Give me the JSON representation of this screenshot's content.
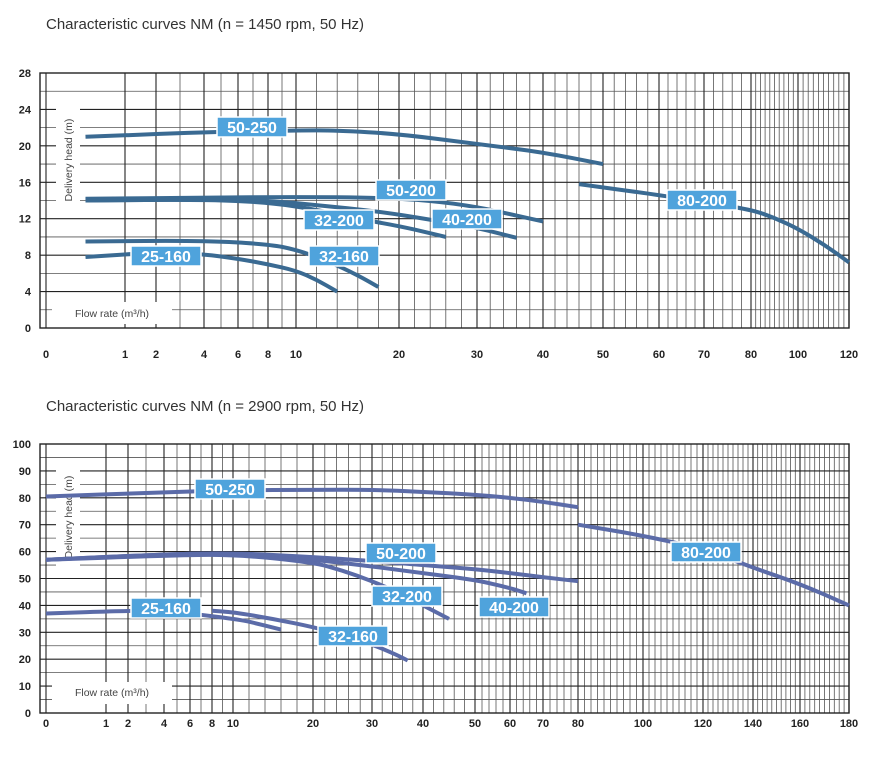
{
  "chart_data": [
    {
      "type": "line",
      "title": "Characteristic curves NM (n = 1450 rpm, 50 Hz)",
      "ylabel": "Delivery head (m)",
      "xlabel": "Flow rate (m³/h)",
      "ylim": [
        0,
        28
      ],
      "y_ticks": [
        0,
        4,
        8,
        12,
        16,
        20,
        24,
        28
      ],
      "x_ticks": [
        0,
        1,
        2,
        4,
        6,
        8,
        10,
        20,
        30,
        40,
        50,
        60,
        70,
        80,
        100,
        120
      ],
      "x_scale": "nonlinear",
      "grid": true,
      "colors": {
        "curve": "#3a6a92",
        "label_bg": "#4fa3dc",
        "label_text": "#ffffff",
        "grid": "#333333"
      },
      "series": [
        {
          "name": "50-250",
          "x": [
            0.5,
            4,
            10,
            14,
            20,
            30,
            40,
            50
          ],
          "y": [
            21,
            21.5,
            21.7,
            21.7,
            21.3,
            20.2,
            19.3,
            18
          ]
        },
        {
          "name": "80-200",
          "x": [
            46,
            60,
            70,
            80,
            90,
            100,
            110,
            120
          ],
          "y": [
            15.8,
            14.6,
            13.8,
            13,
            12.1,
            10.9,
            9.2,
            7.2
          ]
        },
        {
          "name": "50-200",
          "x": [
            0.5,
            4,
            10,
            18,
            24,
            30,
            35,
            40
          ],
          "y": [
            14.2,
            14.3,
            14.4,
            14.3,
            14.0,
            13.3,
            12.5,
            11.7
          ]
        },
        {
          "name": "40-200",
          "x": [
            0.5,
            4,
            8,
            12,
            18,
            24,
            30,
            36
          ],
          "y": [
            14.0,
            14.1,
            14.0,
            13.5,
            12.8,
            11.9,
            11.0,
            9.9
          ]
        },
        {
          "name": "32-200",
          "x": [
            0.5,
            4,
            8,
            12,
            16,
            20,
            24,
            26
          ],
          "y": [
            14.0,
            14.1,
            13.8,
            13.0,
            12.0,
            11.2,
            10.4,
            10.0
          ]
        },
        {
          "name": "32-160",
          "x": [
            0.5,
            4,
            8,
            10,
            13,
            16,
            18
          ],
          "y": [
            9.5,
            9.6,
            9.2,
            8.6,
            7.4,
            5.8,
            4.5
          ]
        },
        {
          "name": "25-160",
          "x": [
            0.5,
            2,
            4,
            6,
            8,
            10,
            12,
            14
          ],
          "y": [
            7.8,
            8.3,
            8.1,
            7.6,
            7.0,
            6.3,
            5.3,
            4.0
          ]
        }
      ]
    },
    {
      "type": "line",
      "title": "Characteristic curves NM (n = 2900 rpm, 50 Hz)",
      "ylabel": "Delivery head (m)",
      "xlabel": "Flow rate (m³/h)",
      "ylim": [
        0,
        100
      ],
      "y_ticks": [
        0,
        10,
        20,
        30,
        40,
        50,
        60,
        70,
        80,
        90,
        100
      ],
      "x_ticks": [
        0,
        1,
        2,
        4,
        6,
        8,
        10,
        20,
        30,
        40,
        50,
        60,
        70,
        80,
        100,
        120,
        140,
        160,
        180
      ],
      "x_scale": "nonlinear",
      "grid": true,
      "colors": {
        "curve": "#5b6ba8",
        "label_bg": "#4fa3dc",
        "label_text": "#ffffff",
        "grid": "#333333"
      },
      "series": [
        {
          "name": "50-250",
          "x": [
            0,
            4,
            10,
            20,
            30,
            40,
            50,
            60,
            70,
            80
          ],
          "y": [
            80.5,
            82,
            82.8,
            83,
            83,
            82.2,
            81.2,
            80,
            78.5,
            76.5
          ]
        },
        {
          "name": "80-200",
          "x": [
            80,
            100,
            120,
            140,
            160,
            180
          ],
          "y": [
            70,
            66,
            61,
            54,
            48,
            40
          ]
        },
        {
          "name": "50-200",
          "x": [
            0,
            4,
            10,
            20,
            30,
            40,
            50,
            60,
            70,
            80
          ],
          "y": [
            57,
            59,
            59.5,
            58,
            56.5,
            55,
            53.5,
            52,
            50.5,
            49
          ]
        },
        {
          "name": "40-200",
          "x": [
            0,
            4,
            10,
            20,
            30,
            40,
            50,
            60,
            65
          ],
          "y": [
            57,
            59,
            59.5,
            57,
            54.5,
            52,
            49.5,
            46.5,
            44.5
          ]
        },
        {
          "name": "32-200",
          "x": [
            0,
            4,
            10,
            20,
            25,
            30,
            35,
            40,
            45
          ],
          "y": [
            57,
            58.5,
            59,
            56,
            53,
            49,
            45,
            40,
            35
          ]
        },
        {
          "name": "32-160",
          "x": [
            8,
            10,
            15,
            20,
            25,
            30,
            35,
            37
          ],
          "y": [
            38,
            37.5,
            35,
            32,
            29,
            25.5,
            21.5,
            19.5
          ]
        },
        {
          "name": "25-160",
          "x": [
            0,
            2,
            4,
            6,
            8,
            10,
            12,
            16
          ],
          "y": [
            37,
            38,
            38,
            37,
            36,
            35,
            34,
            31
          ]
        }
      ]
    }
  ]
}
